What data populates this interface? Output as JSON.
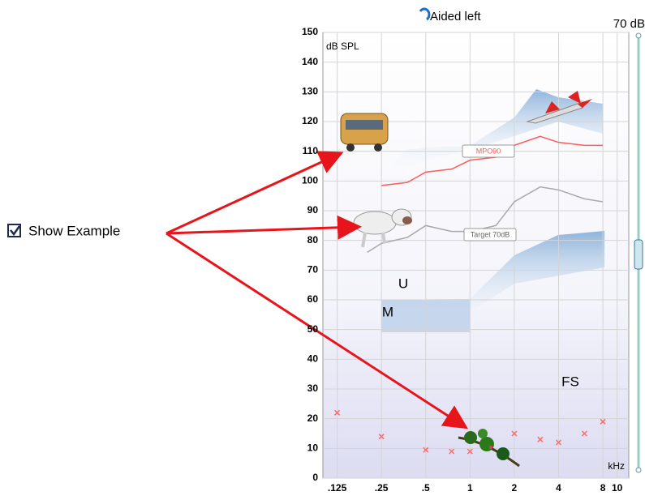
{
  "checkbox": {
    "label": "Show Example",
    "checked": true
  },
  "chart_data": {
    "type": "line",
    "title": "Aided left",
    "level": "70 dB",
    "y_label": "dB SPL",
    "x_label": "kHz",
    "xscale": "log",
    "xlim": [
      0.1,
      12
    ],
    "ylim": [
      0,
      150
    ],
    "xticks": [
      {
        "value": 0.125,
        "label": ".125"
      },
      {
        "value": 0.25,
        "label": ".25"
      },
      {
        "value": 0.5,
        "label": ".5"
      },
      1,
      2,
      4,
      8,
      10
    ],
    "yticks": [
      0,
      10,
      20,
      30,
      40,
      50,
      60,
      70,
      80,
      90,
      100,
      110,
      120,
      130,
      140,
      150
    ],
    "grid": true,
    "series": [
      {
        "name": "MPO90",
        "color": "#ff5a5a",
        "x": [
          0.25,
          0.375,
          0.5,
          0.75,
          1,
          1.5,
          2,
          3,
          4,
          6,
          8
        ],
        "values": [
          98.5,
          99.5,
          103,
          104,
          107,
          108,
          112,
          115,
          113,
          112,
          112
        ]
      },
      {
        "name": "Target 70dB",
        "color": "#aaaaaa",
        "x": [
          0.2,
          0.25,
          0.375,
          0.5,
          0.75,
          1,
          1.5,
          2,
          3,
          4,
          6,
          8
        ],
        "values": [
          76,
          79,
          81,
          85,
          83,
          83,
          85,
          93,
          98,
          97,
          94,
          93
        ]
      },
      {
        "type": "scatter",
        "marker": "x",
        "color": "#ff6a6a",
        "x": [
          0.125,
          0.25,
          0.5,
          0.75,
          1,
          2,
          3,
          4,
          6,
          8
        ],
        "values": [
          22,
          14,
          9.5,
          9,
          9,
          15,
          13,
          12,
          15,
          19
        ]
      }
    ],
    "annotations": [
      "U",
      "M",
      "FS"
    ]
  }
}
